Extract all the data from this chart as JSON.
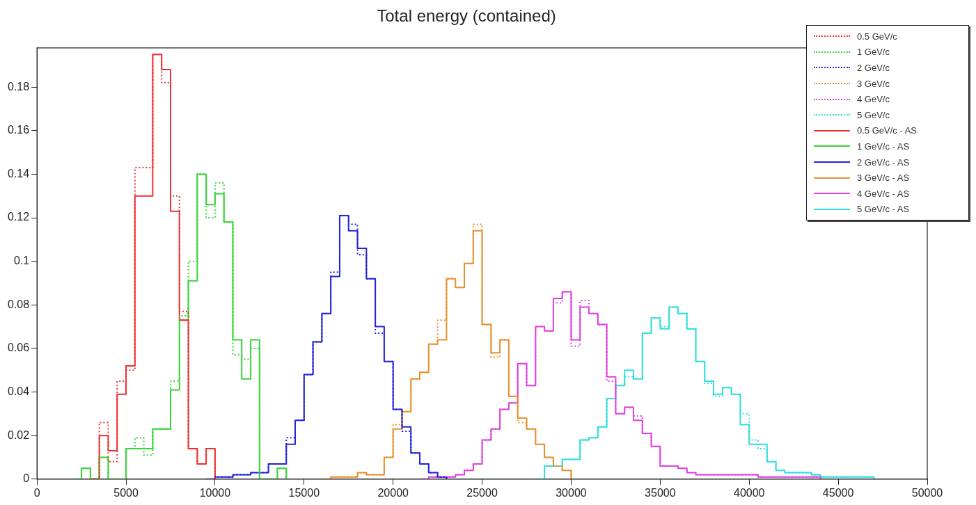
{
  "chart_data": {
    "type": "step",
    "title": "Total energy (contained)",
    "xlim": [
      0,
      50000
    ],
    "xticks": [
      0,
      5000,
      10000,
      15000,
      20000,
      25000,
      30000,
      35000,
      40000,
      45000,
      50000
    ],
    "ylim": [
      0,
      0.198
    ],
    "yticks": [
      0,
      0.02,
      0.04,
      0.06,
      0.08,
      0.1,
      0.12,
      0.14,
      0.16,
      0.18
    ],
    "grid": false,
    "legend": "top right",
    "series": [
      {
        "name": "0.5 GeV/c",
        "color": "#f03030",
        "line_style": "dotted",
        "x": [
          3000,
          3500,
          4000,
          4500,
          5000,
          5500,
          6000,
          6500,
          7000,
          7500,
          8000,
          8500,
          9000,
          9500,
          10000
        ],
        "values": [
          0,
          0.026,
          0.008,
          0.045,
          0.05,
          0.143,
          0.143,
          0.195,
          0.182,
          0.13,
          0.077,
          0.014,
          0.007,
          0.014,
          0
        ]
      },
      {
        "name": "1 GeV/c",
        "color": "#33d633",
        "line_style": "dotted",
        "x": [
          2000,
          2500,
          3000,
          3500,
          4000,
          4500,
          5000,
          5500,
          6000,
          6500,
          7000,
          7500,
          8000,
          8500,
          9000,
          9500,
          10000,
          10500,
          11000,
          11500,
          12000,
          12500,
          13000,
          13500,
          14000
        ],
        "values": [
          0,
          0.005,
          0,
          0.01,
          0,
          0,
          0.014,
          0.019,
          0.011,
          0.023,
          0.023,
          0.045,
          0.075,
          0.1,
          0.14,
          0.12,
          0.136,
          0.118,
          0.057,
          0.055,
          0.06,
          0,
          0,
          0.005,
          0
        ]
      },
      {
        "name": "2 GeV/c",
        "color": "#2424d8",
        "line_style": "dotted",
        "x": [
          9500,
          10000,
          10500,
          11000,
          11500,
          12000,
          12500,
          13000,
          13500,
          14000,
          14500,
          15000,
          15500,
          16000,
          16500,
          17000,
          17500,
          18000,
          18500,
          19000,
          19500,
          20000,
          20500,
          21000,
          21500,
          22000,
          22500,
          23000
        ],
        "values": [
          0,
          0.001,
          0.001,
          0.002,
          0.002,
          0.003,
          0.003,
          0.007,
          0.007,
          0.019,
          0.027,
          0.048,
          0.063,
          0.076,
          0.095,
          0.121,
          0.117,
          0.103,
          0.092,
          0.067,
          0.054,
          0.032,
          0.022,
          0.012,
          0.007,
          0.003,
          0.001,
          0
        ]
      },
      {
        "name": "3 GeV/c",
        "color": "#e8902e",
        "line_style": "dotted",
        "x": [
          16000,
          16500,
          17000,
          17500,
          18000,
          18500,
          19000,
          19500,
          20000,
          20500,
          21000,
          21500,
          22000,
          22500,
          23000,
          23500,
          24000,
          24500,
          25000,
          25500,
          26000,
          26500,
          27000,
          27500,
          28000,
          28500,
          29000,
          29500,
          30000
        ],
        "values": [
          0,
          0.001,
          0.001,
          0.001,
          0.003,
          0.002,
          0.002,
          0.01,
          0.025,
          0.031,
          0.046,
          0.049,
          0.062,
          0.073,
          0.092,
          0.088,
          0.099,
          0.117,
          0.071,
          0.056,
          0.064,
          0.038,
          0.026,
          0.023,
          0.016,
          0.01,
          0.006,
          0.004,
          0
        ]
      },
      {
        "name": "4 GeV/c",
        "color": "#e040e0",
        "line_style": "dotted",
        "x": [
          21500,
          22000,
          22500,
          23000,
          23500,
          24000,
          24500,
          25000,
          25500,
          26000,
          26500,
          27000,
          27500,
          28000,
          28500,
          29000,
          29500,
          30000,
          30500,
          31000,
          31500,
          32000,
          32500,
          33000,
          33500,
          34000,
          34500,
          35000,
          35500,
          36000,
          36500,
          37000,
          37500,
          38000,
          38500,
          39000,
          39500,
          40000,
          40500,
          41000,
          41500,
          42000,
          42500,
          43000,
          43500,
          44000
        ],
        "values": [
          0,
          0.001,
          0.001,
          0.001,
          0.002,
          0.004,
          0.007,
          0.018,
          0.023,
          0.032,
          0.035,
          0.053,
          0.043,
          0.07,
          0.068,
          0.081,
          0.086,
          0.061,
          0.082,
          0.076,
          0.071,
          0.045,
          0.03,
          0.033,
          0.029,
          0.021,
          0.015,
          0.006,
          0.006,
          0.005,
          0.003,
          0.002,
          0.002,
          0.002,
          0.002,
          0.002,
          0.002,
          0.002,
          0.001,
          0.001,
          0.001,
          0.001,
          0.001,
          0.001,
          0.001,
          0
        ]
      },
      {
        "name": "5 GeV/c",
        "color": "#30dede",
        "line_style": "dotted",
        "x": [
          28000,
          28500,
          29000,
          29500,
          30000,
          30500,
          31000,
          31500,
          32000,
          32500,
          33000,
          33500,
          34000,
          34500,
          35000,
          35500,
          36000,
          36500,
          37000,
          37500,
          38000,
          38500,
          39000,
          39500,
          40000,
          40500,
          41000,
          41500,
          42000,
          42500,
          43000,
          43500,
          44000,
          44500,
          45000,
          45500,
          46000,
          46500,
          47000
        ],
        "values": [
          0,
          0.006,
          0.006,
          0.009,
          0.009,
          0.018,
          0.019,
          0.024,
          0.037,
          0.043,
          0.047,
          0.046,
          0.067,
          0.074,
          0.07,
          0.079,
          0.076,
          0.069,
          0.054,
          0.044,
          0.038,
          0.042,
          0.039,
          0.03,
          0.018,
          0.014,
          0.008,
          0.004,
          0.003,
          0.003,
          0.003,
          0.002,
          0.001,
          0.001,
          0.001,
          0.001,
          0.001,
          0.001,
          0
        ]
      },
      {
        "name": "0.5 GeV/c - AS",
        "color": "#f03030",
        "line_style": "solid",
        "x": [
          3000,
          3500,
          4000,
          4500,
          5000,
          5500,
          6000,
          6500,
          7000,
          7500,
          8000,
          8500,
          9000,
          9500,
          10000
        ],
        "values": [
          0,
          0.02,
          0.013,
          0.039,
          0.052,
          0.13,
          0.13,
          0.195,
          0.188,
          0.123,
          0.073,
          0.014,
          0.007,
          0.014,
          0
        ]
      },
      {
        "name": "1 GeV/c - AS",
        "color": "#33d633",
        "line_style": "solid",
        "x": [
          2000,
          2500,
          3000,
          3500,
          4000,
          4500,
          5000,
          5500,
          6000,
          6500,
          7000,
          7500,
          8000,
          8500,
          9000,
          9500,
          10000,
          10500,
          11000,
          11500,
          12000,
          12500,
          13000,
          13500,
          14000
        ],
        "values": [
          0,
          0.005,
          0,
          0.01,
          0,
          0,
          0.014,
          0.014,
          0.014,
          0.023,
          0.023,
          0.041,
          0.073,
          0.091,
          0.14,
          0.126,
          0.131,
          0.118,
          0.064,
          0.046,
          0.064,
          0,
          0,
          0.005,
          0
        ]
      },
      {
        "name": "2 GeV/c - AS",
        "color": "#2424d8",
        "line_style": "solid",
        "x": [
          9500,
          10000,
          10500,
          11000,
          11500,
          12000,
          12500,
          13000,
          13500,
          14000,
          14500,
          15000,
          15500,
          16000,
          16500,
          17000,
          17500,
          18000,
          18500,
          19000,
          19500,
          20000,
          20500,
          21000,
          21500,
          22000,
          22500,
          23000
        ],
        "values": [
          0,
          0.001,
          0.001,
          0.002,
          0.002,
          0.003,
          0.003,
          0.007,
          0.007,
          0.016,
          0.027,
          0.048,
          0.063,
          0.076,
          0.093,
          0.121,
          0.114,
          0.106,
          0.092,
          0.07,
          0.054,
          0.032,
          0.024,
          0.012,
          0.007,
          0.003,
          0.001,
          0
        ]
      },
      {
        "name": "3 GeV/c - AS",
        "color": "#e8902e",
        "line_style": "solid",
        "x": [
          16000,
          16500,
          17000,
          17500,
          18000,
          18500,
          19000,
          19500,
          20000,
          20500,
          21000,
          21500,
          22000,
          22500,
          23000,
          23500,
          24000,
          24500,
          25000,
          25500,
          26000,
          26500,
          27000,
          27500,
          28000,
          28500,
          29000,
          29500,
          30000
        ],
        "values": [
          0,
          0.001,
          0.001,
          0.001,
          0.003,
          0.002,
          0.002,
          0.01,
          0.023,
          0.031,
          0.046,
          0.049,
          0.062,
          0.064,
          0.092,
          0.088,
          0.099,
          0.114,
          0.071,
          0.058,
          0.064,
          0.038,
          0.028,
          0.023,
          0.016,
          0.01,
          0.006,
          0.004,
          0
        ]
      },
      {
        "name": "4 GeV/c - AS",
        "color": "#e040e0",
        "line_style": "solid",
        "x": [
          21500,
          22000,
          22500,
          23000,
          23500,
          24000,
          24500,
          25000,
          25500,
          26000,
          26500,
          27000,
          27500,
          28000,
          28500,
          29000,
          29500,
          30000,
          30500,
          31000,
          31500,
          32000,
          32500,
          33000,
          33500,
          34000,
          34500,
          35000,
          35500,
          36000,
          36500,
          37000,
          37500,
          38000,
          38500,
          39000,
          39500,
          40000,
          40500,
          41000,
          41500,
          42000,
          42500,
          43000,
          43500,
          44000
        ],
        "values": [
          0,
          0.001,
          0.001,
          0.001,
          0.002,
          0.004,
          0.007,
          0.018,
          0.023,
          0.032,
          0.035,
          0.053,
          0.043,
          0.07,
          0.068,
          0.083,
          0.086,
          0.064,
          0.079,
          0.076,
          0.071,
          0.047,
          0.03,
          0.033,
          0.027,
          0.021,
          0.015,
          0.006,
          0.006,
          0.005,
          0.003,
          0.002,
          0.002,
          0.002,
          0.002,
          0.002,
          0.002,
          0.002,
          0.001,
          0.001,
          0.001,
          0.001,
          0.001,
          0.001,
          0.001,
          0
        ]
      },
      {
        "name": "5 GeV/c - AS",
        "color": "#30dede",
        "line_style": "solid",
        "x": [
          28000,
          28500,
          29000,
          29500,
          30000,
          30500,
          31000,
          31500,
          32000,
          32500,
          33000,
          33500,
          34000,
          34500,
          35000,
          35500,
          36000,
          36500,
          37000,
          37500,
          38000,
          38500,
          39000,
          39500,
          40000,
          40500,
          41000,
          41500,
          42000,
          42500,
          43000,
          43500,
          44000,
          44500,
          45000,
          45500,
          46000,
          46500,
          47000
        ],
        "values": [
          0,
          0.006,
          0.006,
          0.009,
          0.009,
          0.018,
          0.019,
          0.024,
          0.037,
          0.043,
          0.05,
          0.046,
          0.067,
          0.074,
          0.069,
          0.079,
          0.076,
          0.069,
          0.054,
          0.045,
          0.039,
          0.042,
          0.039,
          0.025,
          0.016,
          0.016,
          0.008,
          0.004,
          0.003,
          0.003,
          0.003,
          0.002,
          0.001,
          0.001,
          0.001,
          0.001,
          0.001,
          0.001,
          0
        ]
      }
    ]
  }
}
